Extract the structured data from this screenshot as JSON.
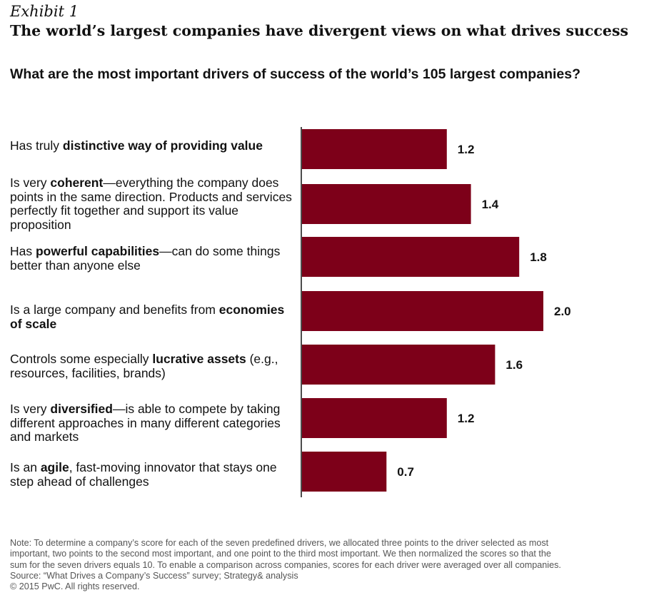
{
  "header": {
    "exhibit": "Exhibit 1",
    "headline": "The world’s largest companies have divergent views on what drives success",
    "question": "What are the most important drivers of success of the world’s 105 largest companies?"
  },
  "drivers": [
    {
      "parts": [
        {
          "t": "Has truly ",
          "b": false
        },
        {
          "t": "distinctive way of providing value",
          "b": true
        }
      ]
    },
    {
      "parts": [
        {
          "t": "Is very ",
          "b": false
        },
        {
          "t": "coherent",
          "b": true
        },
        {
          "t": "—everything the company does points in the same direction. Products and services perfectly fit together and support its value proposition",
          "b": false
        }
      ]
    },
    {
      "parts": [
        {
          "t": "Has ",
          "b": false
        },
        {
          "t": "powerful capabilities",
          "b": true
        },
        {
          "t": "—can do some things better than anyone else",
          "b": false
        }
      ]
    },
    {
      "parts": [
        {
          "t": "Is a large company and benefits from ",
          "b": false
        },
        {
          "t": "economies of scale",
          "b": true
        }
      ]
    },
    {
      "parts": [
        {
          "t": "Controls some especially ",
          "b": false
        },
        {
          "t": "lucrative assets",
          "b": true
        },
        {
          "t": " (e.g., resources, facilities, brands)",
          "b": false
        }
      ]
    },
    {
      "parts": [
        {
          "t": "Is very ",
          "b": false
        },
        {
          "t": "diversified",
          "b": true
        },
        {
          "t": "—is able to compete by taking different approaches in many different categories and markets",
          "b": false
        }
      ]
    },
    {
      "parts": [
        {
          "t": "Is an ",
          "b": false
        },
        {
          "t": "agile",
          "b": true
        },
        {
          "t": ", fast-moving innovator that stays one step ahead of challenges",
          "b": false
        }
      ]
    }
  ],
  "chart_data": {
    "type": "bar",
    "orientation": "horizontal",
    "categories": [
      "Has truly distinctive way of providing value",
      "Is very coherent—everything the company does points in the same direction. Products and services perfectly fit together and support its value proposition",
      "Has powerful capabilities—can do some things better than anyone else",
      "Is a large company and benefits from economies of scale",
      "Controls some especially lucrative assets (e.g., resources, facilities, brands)",
      "Is very diversified—is able to compete by taking different approaches in many different categories and markets",
      "Is an agile, fast-moving innovator that stays one step ahead of challenges"
    ],
    "values": [
      1.2,
      1.4,
      1.8,
      2.0,
      1.6,
      1.2,
      0.7
    ],
    "value_labels": [
      "1.2",
      "1.4",
      "1.8",
      "2.0",
      "1.6",
      "1.2",
      "0.7"
    ],
    "bar_color": "#7d0019",
    "xlim": [
      0,
      2.0
    ],
    "grid": false
  },
  "notes": {
    "line1": "Note: To determine a company’s score for each of the seven predefined drivers, we allocated three points to the driver selected as most",
    "line2": "important, two points to the second most important, and one point to the third most important. We then normalized the scores so that the",
    "line3": "sum for the seven drivers equals 10. To enable a comparison across companies, scores for each driver were averaged over all companies.",
    "source": "Source: “What Drives a Company’s Success” survey; Strategy& analysis",
    "copyright": "© 2015 PwC. All rights reserved."
  }
}
